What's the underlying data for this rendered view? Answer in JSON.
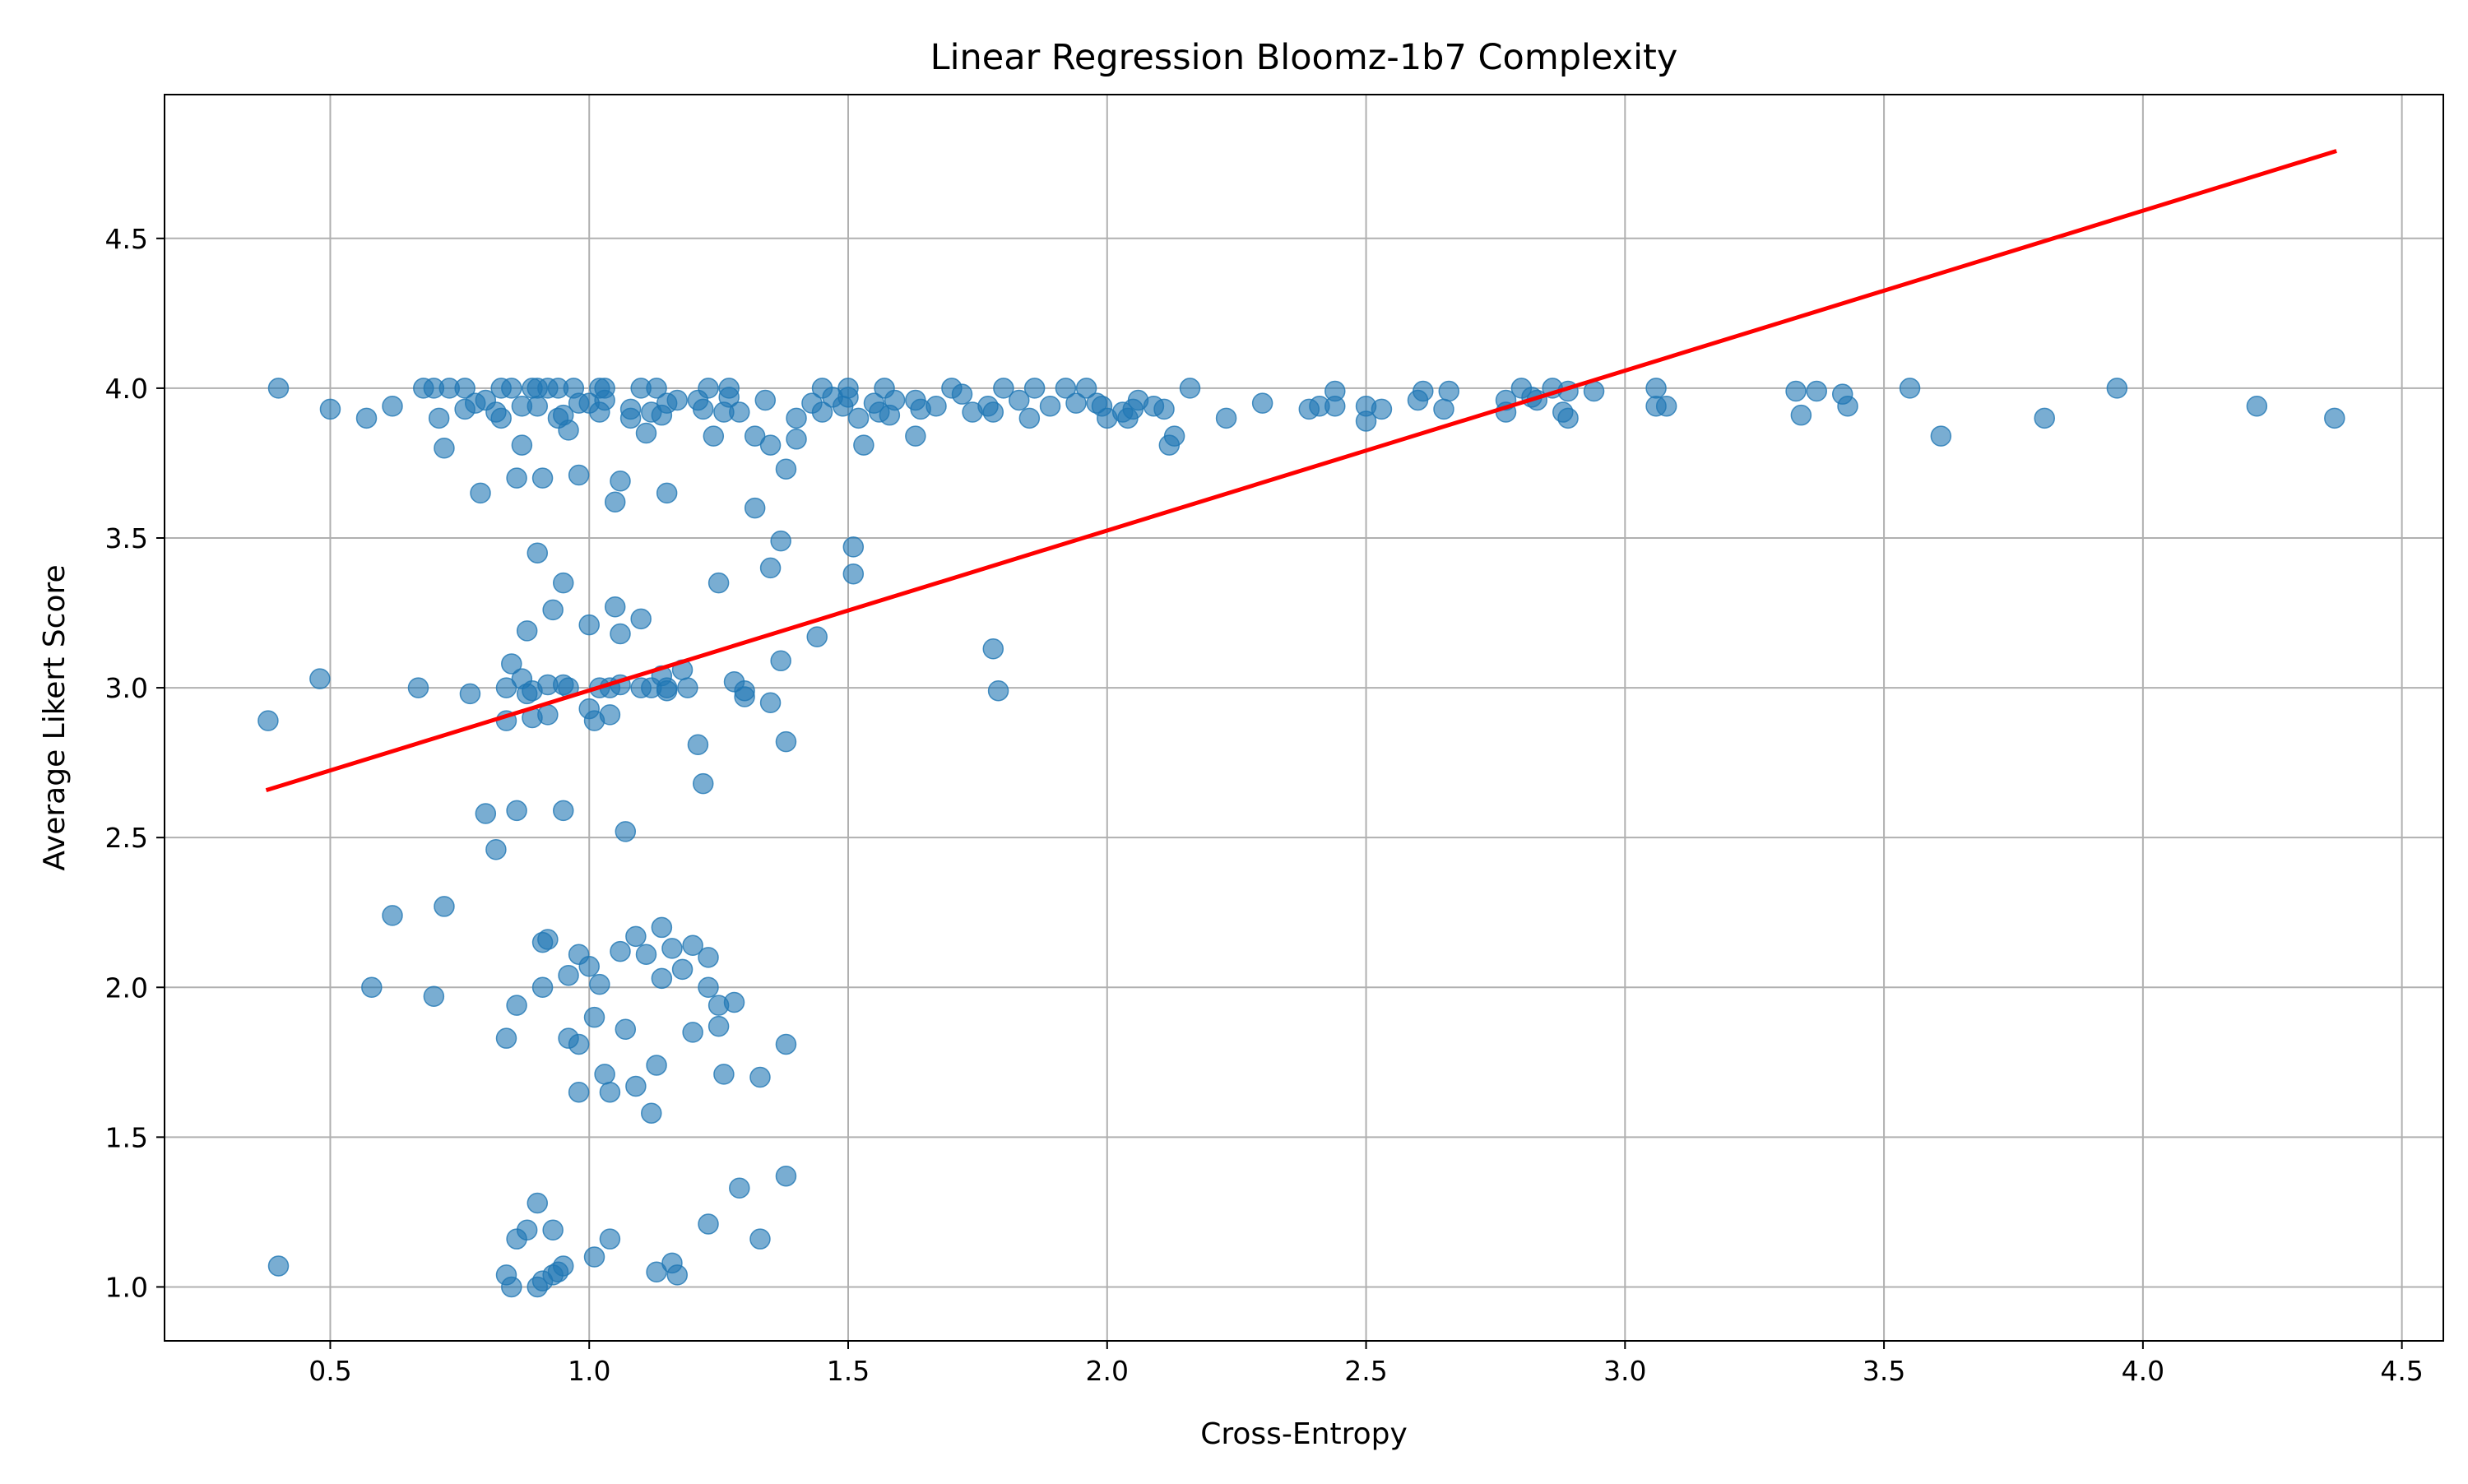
{
  "chart_data": {
    "type": "scatter",
    "title": "Linear Regression Bloomz-1b7 Complexity",
    "xlabel": "Cross-Entropy",
    "ylabel": "Average Likert Score",
    "xlim": [
      0.18,
      4.58
    ],
    "ylim": [
      0.82,
      4.98
    ],
    "xticks": [
      0.5,
      1.0,
      1.5,
      2.0,
      2.5,
      3.0,
      3.5,
      4.0,
      4.5
    ],
    "yticks": [
      1.0,
      1.5,
      2.0,
      2.5,
      3.0,
      3.5,
      4.0,
      4.5
    ],
    "grid": true,
    "colors": {
      "points": "#1f77b4",
      "regression": "#ff0000",
      "grid": "#b0b0b0"
    },
    "regression_line": {
      "x": [
        0.38,
        4.37
      ],
      "y": [
        2.66,
        4.79
      ]
    },
    "points": [
      [
        0.38,
        2.89
      ],
      [
        0.4,
        4.0
      ],
      [
        0.4,
        1.07
      ],
      [
        0.48,
        3.03
      ],
      [
        0.5,
        3.93
      ],
      [
        0.57,
        3.9
      ],
      [
        0.58,
        2.0
      ],
      [
        0.62,
        3.94
      ],
      [
        0.62,
        2.24
      ],
      [
        0.67,
        3.0
      ],
      [
        0.68,
        4.0
      ],
      [
        0.7,
        4.0
      ],
      [
        0.7,
        1.97
      ],
      [
        0.71,
        3.9
      ],
      [
        0.72,
        3.8
      ],
      [
        0.72,
        2.27
      ],
      [
        0.73,
        4.0
      ],
      [
        0.76,
        4.0
      ],
      [
        0.76,
        3.93
      ],
      [
        0.77,
        2.98
      ],
      [
        0.78,
        3.95
      ],
      [
        0.79,
        3.65
      ],
      [
        0.8,
        3.96
      ],
      [
        0.8,
        2.58
      ],
      [
        0.82,
        3.92
      ],
      [
        0.82,
        2.46
      ],
      [
        0.83,
        3.9
      ],
      [
        0.83,
        4.0
      ],
      [
        0.84,
        3.0
      ],
      [
        0.84,
        2.89
      ],
      [
        0.84,
        1.83
      ],
      [
        0.84,
        1.04
      ],
      [
        0.85,
        4.0
      ],
      [
        0.85,
        3.08
      ],
      [
        0.85,
        1.0
      ],
      [
        0.86,
        1.94
      ],
      [
        0.86,
        3.7
      ],
      [
        0.86,
        2.59
      ],
      [
        0.86,
        1.16
      ],
      [
        0.87,
        3.94
      ],
      [
        0.87,
        3.81
      ],
      [
        0.87,
        3.03
      ],
      [
        0.88,
        2.98
      ],
      [
        0.88,
        3.19
      ],
      [
        0.88,
        1.19
      ],
      [
        0.89,
        4.0
      ],
      [
        0.89,
        2.99
      ],
      [
        0.89,
        2.9
      ],
      [
        0.9,
        4.0
      ],
      [
        0.9,
        3.94
      ],
      [
        0.9,
        3.45
      ],
      [
        0.9,
        1.28
      ],
      [
        0.9,
        1.0
      ],
      [
        0.91,
        3.7
      ],
      [
        0.91,
        2.15
      ],
      [
        0.91,
        2.0
      ],
      [
        0.91,
        1.02
      ],
      [
        0.92,
        4.0
      ],
      [
        0.92,
        3.01
      ],
      [
        0.92,
        2.16
      ],
      [
        0.92,
        2.91
      ],
      [
        0.93,
        3.26
      ],
      [
        0.93,
        1.19
      ],
      [
        0.93,
        1.04
      ],
      [
        0.94,
        4.0
      ],
      [
        0.94,
        3.9
      ],
      [
        0.94,
        1.05
      ],
      [
        0.95,
        3.91
      ],
      [
        0.95,
        3.01
      ],
      [
        0.95,
        2.59
      ],
      [
        0.95,
        3.35
      ],
      [
        0.95,
        1.07
      ],
      [
        0.96,
        3.86
      ],
      [
        0.96,
        3.0
      ],
      [
        0.96,
        2.04
      ],
      [
        0.96,
        1.83
      ],
      [
        0.97,
        4.0
      ],
      [
        0.98,
        3.95
      ],
      [
        0.98,
        3.71
      ],
      [
        0.98,
        2.11
      ],
      [
        0.98,
        1.81
      ],
      [
        0.98,
        1.65
      ],
      [
        1.0,
        3.95
      ],
      [
        1.0,
        3.21
      ],
      [
        1.0,
        2.93
      ],
      [
        1.0,
        2.07
      ],
      [
        1.01,
        2.89
      ],
      [
        1.01,
        1.9
      ],
      [
        1.01,
        1.1
      ],
      [
        1.02,
        4.0
      ],
      [
        1.02,
        3.92
      ],
      [
        1.02,
        3.0
      ],
      [
        1.02,
        2.01
      ],
      [
        1.03,
        4.0
      ],
      [
        1.03,
        3.96
      ],
      [
        1.03,
        1.71
      ],
      [
        1.04,
        3.0
      ],
      [
        1.04,
        2.91
      ],
      [
        1.04,
        1.65
      ],
      [
        1.04,
        1.16
      ],
      [
        1.05,
        3.27
      ],
      [
        1.05,
        3.62
      ],
      [
        1.06,
        3.69
      ],
      [
        1.06,
        3.18
      ],
      [
        1.06,
        3.01
      ],
      [
        1.06,
        2.12
      ],
      [
        1.07,
        2.52
      ],
      [
        1.07,
        1.86
      ],
      [
        1.08,
        3.93
      ],
      [
        1.08,
        3.9
      ],
      [
        1.09,
        2.17
      ],
      [
        1.09,
        1.67
      ],
      [
        1.1,
        4.0
      ],
      [
        1.1,
        3.23
      ],
      [
        1.1,
        3.0
      ],
      [
        1.11,
        3.85
      ],
      [
        1.11,
        2.11
      ],
      [
        1.12,
        3.92
      ],
      [
        1.12,
        3.0
      ],
      [
        1.12,
        1.58
      ],
      [
        1.13,
        4.0
      ],
      [
        1.13,
        1.74
      ],
      [
        1.13,
        1.05
      ],
      [
        1.14,
        3.91
      ],
      [
        1.14,
        3.04
      ],
      [
        1.14,
        2.2
      ],
      [
        1.14,
        2.03
      ],
      [
        1.15,
        3.95
      ],
      [
        1.15,
        3.65
      ],
      [
        1.15,
        3.0
      ],
      [
        1.15,
        2.99
      ],
      [
        1.16,
        2.13
      ],
      [
        1.16,
        1.08
      ],
      [
        1.17,
        3.96
      ],
      [
        1.17,
        1.04
      ],
      [
        1.18,
        2.06
      ],
      [
        1.18,
        3.06
      ],
      [
        1.19,
        3.0
      ],
      [
        1.2,
        2.14
      ],
      [
        1.2,
        1.85
      ],
      [
        1.21,
        3.96
      ],
      [
        1.21,
        2.81
      ],
      [
        1.22,
        3.93
      ],
      [
        1.22,
        2.68
      ],
      [
        1.23,
        4.0
      ],
      [
        1.23,
        2.1
      ],
      [
        1.23,
        2.0
      ],
      [
        1.23,
        1.21
      ],
      [
        1.24,
        3.84
      ],
      [
        1.25,
        3.35
      ],
      [
        1.25,
        1.94
      ],
      [
        1.25,
        1.87
      ],
      [
        1.26,
        3.92
      ],
      [
        1.26,
        1.71
      ],
      [
        1.27,
        4.0
      ],
      [
        1.27,
        3.97
      ],
      [
        1.28,
        3.02
      ],
      [
        1.28,
        1.95
      ],
      [
        1.29,
        3.92
      ],
      [
        1.29,
        1.33
      ],
      [
        1.3,
        2.99
      ],
      [
        1.3,
        2.97
      ],
      [
        1.32,
        3.6
      ],
      [
        1.32,
        3.84
      ],
      [
        1.33,
        1.7
      ],
      [
        1.33,
        1.16
      ],
      [
        1.34,
        3.96
      ],
      [
        1.35,
        3.4
      ],
      [
        1.35,
        2.95
      ],
      [
        1.35,
        3.81
      ],
      [
        1.37,
        3.49
      ],
      [
        1.37,
        3.09
      ],
      [
        1.38,
        3.73
      ],
      [
        1.38,
        2.82
      ],
      [
        1.38,
        1.81
      ],
      [
        1.38,
        1.37
      ],
      [
        1.4,
        3.9
      ],
      [
        1.4,
        3.83
      ],
      [
        1.43,
        3.95
      ],
      [
        1.44,
        3.17
      ],
      [
        1.45,
        4.0
      ],
      [
        1.45,
        3.92
      ],
      [
        1.47,
        3.97
      ],
      [
        1.49,
        3.94
      ],
      [
        1.5,
        4.0
      ],
      [
        1.5,
        3.97
      ],
      [
        1.51,
        3.47
      ],
      [
        1.51,
        3.38
      ],
      [
        1.52,
        3.9
      ],
      [
        1.53,
        3.81
      ],
      [
        1.55,
        3.95
      ],
      [
        1.56,
        3.92
      ],
      [
        1.57,
        4.0
      ],
      [
        1.58,
        3.91
      ],
      [
        1.59,
        3.96
      ],
      [
        1.63,
        3.96
      ],
      [
        1.63,
        3.84
      ],
      [
        1.64,
        3.93
      ],
      [
        1.67,
        3.94
      ],
      [
        1.7,
        4.0
      ],
      [
        1.72,
        3.98
      ],
      [
        1.74,
        3.92
      ],
      [
        1.77,
        3.94
      ],
      [
        1.78,
        3.92
      ],
      [
        1.78,
        3.13
      ],
      [
        1.79,
        2.99
      ],
      [
        1.8,
        4.0
      ],
      [
        1.83,
        3.96
      ],
      [
        1.85,
        3.9
      ],
      [
        1.86,
        4.0
      ],
      [
        1.89,
        3.94
      ],
      [
        1.92,
        4.0
      ],
      [
        1.94,
        3.95
      ],
      [
        1.96,
        4.0
      ],
      [
        1.98,
        3.95
      ],
      [
        1.99,
        3.94
      ],
      [
        2.0,
        3.9
      ],
      [
        2.03,
        3.92
      ],
      [
        2.04,
        3.9
      ],
      [
        2.05,
        3.93
      ],
      [
        2.06,
        3.96
      ],
      [
        2.09,
        3.94
      ],
      [
        2.11,
        3.93
      ],
      [
        2.12,
        3.81
      ],
      [
        2.13,
        3.84
      ],
      [
        2.16,
        4.0
      ],
      [
        2.23,
        3.9
      ],
      [
        2.3,
        3.95
      ],
      [
        2.39,
        3.93
      ],
      [
        2.41,
        3.94
      ],
      [
        2.44,
        3.99
      ],
      [
        2.44,
        3.94
      ],
      [
        2.5,
        3.94
      ],
      [
        2.5,
        3.89
      ],
      [
        2.53,
        3.93
      ],
      [
        2.6,
        3.96
      ],
      [
        2.61,
        3.99
      ],
      [
        2.65,
        3.93
      ],
      [
        2.66,
        3.99
      ],
      [
        2.77,
        3.96
      ],
      [
        2.77,
        3.92
      ],
      [
        2.8,
        4.0
      ],
      [
        2.82,
        3.97
      ],
      [
        2.83,
        3.96
      ],
      [
        2.86,
        4.0
      ],
      [
        2.88,
        3.92
      ],
      [
        2.89,
        3.9
      ],
      [
        2.89,
        3.99
      ],
      [
        2.94,
        3.99
      ],
      [
        3.06,
        4.0
      ],
      [
        3.06,
        3.94
      ],
      [
        3.08,
        3.94
      ],
      [
        3.33,
        3.99
      ],
      [
        3.34,
        3.91
      ],
      [
        3.37,
        3.99
      ],
      [
        3.42,
        3.98
      ],
      [
        3.43,
        3.94
      ],
      [
        3.55,
        4.0
      ],
      [
        3.61,
        3.84
      ],
      [
        3.81,
        3.9
      ],
      [
        3.95,
        4.0
      ],
      [
        4.22,
        3.94
      ],
      [
        4.37,
        3.9
      ]
    ]
  }
}
